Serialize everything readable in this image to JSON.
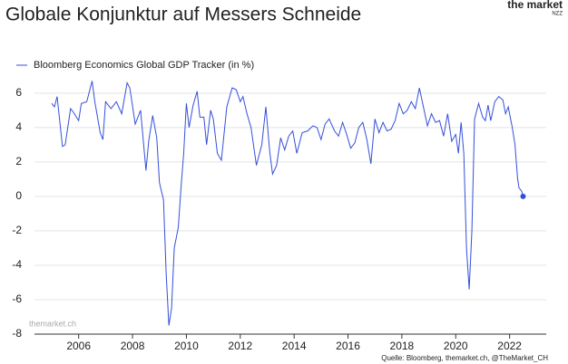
{
  "chart_data": {
    "type": "line",
    "title": "Globale Konjunktur auf Messers Schneide",
    "logo": "the market",
    "logo_sub": "NZZ",
    "watermark": "themarket.ch",
    "source": "Quelle: Bloomberg, themarket.ch, @TheMarket_CH",
    "xlim": [
      2004.36,
      2023.36
    ],
    "xticks": [
      2006,
      2008,
      2010,
      2012,
      2014,
      2016,
      2018,
      2020,
      2022
    ],
    "ylim": [
      -8,
      7.2
    ],
    "yticks": [
      -8,
      -6,
      -4,
      -2,
      0,
      2,
      4,
      6
    ],
    "grid": true,
    "end_marker": true,
    "x": [
      2005.0,
      2005.1,
      2005.2,
      2005.4,
      2005.5,
      2005.7,
      2005.8,
      2006.0,
      2006.1,
      2006.3,
      2006.5,
      2006.6,
      2006.8,
      2006.9,
      2007.0,
      2007.2,
      2007.4,
      2007.6,
      2007.8,
      2007.9,
      2008.1,
      2008.3,
      2008.5,
      2008.6,
      2008.75,
      2008.9,
      2009.0,
      2009.15,
      2009.25,
      2009.35,
      2009.45,
      2009.55,
      2009.7,
      2009.8,
      2009.9,
      2010.0,
      2010.1,
      2010.25,
      2010.4,
      2010.5,
      2010.65,
      2010.75,
      2010.9,
      2011.0,
      2011.15,
      2011.3,
      2011.5,
      2011.7,
      2011.85,
      2012.0,
      2012.1,
      2012.25,
      2012.4,
      2012.6,
      2012.8,
      2012.95,
      2013.1,
      2013.2,
      2013.35,
      2013.5,
      2013.65,
      2013.8,
      2013.95,
      2014.1,
      2014.3,
      2014.5,
      2014.7,
      2014.85,
      2015.0,
      2015.15,
      2015.3,
      2015.5,
      2015.65,
      2015.8,
      2015.95,
      2016.1,
      2016.25,
      2016.4,
      2016.55,
      2016.7,
      2016.85,
      2017.0,
      2017.15,
      2017.3,
      2017.45,
      2017.6,
      2017.75,
      2017.9,
      2018.05,
      2018.2,
      2018.35,
      2018.5,
      2018.65,
      2018.8,
      2018.95,
      2019.1,
      2019.25,
      2019.4,
      2019.55,
      2019.7,
      2019.85,
      2020.0,
      2020.1,
      2020.2,
      2020.3,
      2020.4,
      2020.5,
      2020.6,
      2020.7,
      2020.85,
      2021.0,
      2021.1,
      2021.2,
      2021.3,
      2021.45,
      2021.6,
      2021.75,
      2021.85,
      2021.95,
      2022.1,
      2022.2,
      2022.3,
      2022.35,
      2022.45,
      2022.5
    ],
    "series": [
      {
        "name": "Bloomberg Economics Global GDP Tracker (in %)",
        "color": "#3450d8",
        "values": [
          5.4,
          5.2,
          5.8,
          2.9,
          3.0,
          5.1,
          4.9,
          4.4,
          5.4,
          5.5,
          6.7,
          5.5,
          3.7,
          3.3,
          5.5,
          5.1,
          5.5,
          4.8,
          6.6,
          6.3,
          4.2,
          5.0,
          1.5,
          3.2,
          4.7,
          3.4,
          0.8,
          -0.2,
          -4.5,
          -7.5,
          -6.5,
          -3.0,
          -1.8,
          0.5,
          2.5,
          5.4,
          4.0,
          5.3,
          6.1,
          4.6,
          4.6,
          3.0,
          5.0,
          4.5,
          2.5,
          2.1,
          5.2,
          6.3,
          6.2,
          5.5,
          5.8,
          4.8,
          4.0,
          1.8,
          3.0,
          5.2,
          2.5,
          1.3,
          1.8,
          3.4,
          2.7,
          3.5,
          3.8,
          2.5,
          3.7,
          3.8,
          4.1,
          4.0,
          3.3,
          4.2,
          4.5,
          3.8,
          3.5,
          4.3,
          3.6,
          2.8,
          3.1,
          4.0,
          4.3,
          3.3,
          1.9,
          4.5,
          3.7,
          4.3,
          3.8,
          3.9,
          4.4,
          5.4,
          4.8,
          5.0,
          5.5,
          5.1,
          6.3,
          5.2,
          4.1,
          4.8,
          4.3,
          4.4,
          3.5,
          4.8,
          3.2,
          3.6,
          2.5,
          4.3,
          2.5,
          -3.0,
          -5.4,
          -2.0,
          4.5,
          5.4,
          4.6,
          4.4,
          5.3,
          4.4,
          5.5,
          5.8,
          5.6,
          4.8,
          5.2,
          4.0,
          3.0,
          1.0,
          0.5,
          0.3,
          0.0
        ]
      }
    ]
  }
}
